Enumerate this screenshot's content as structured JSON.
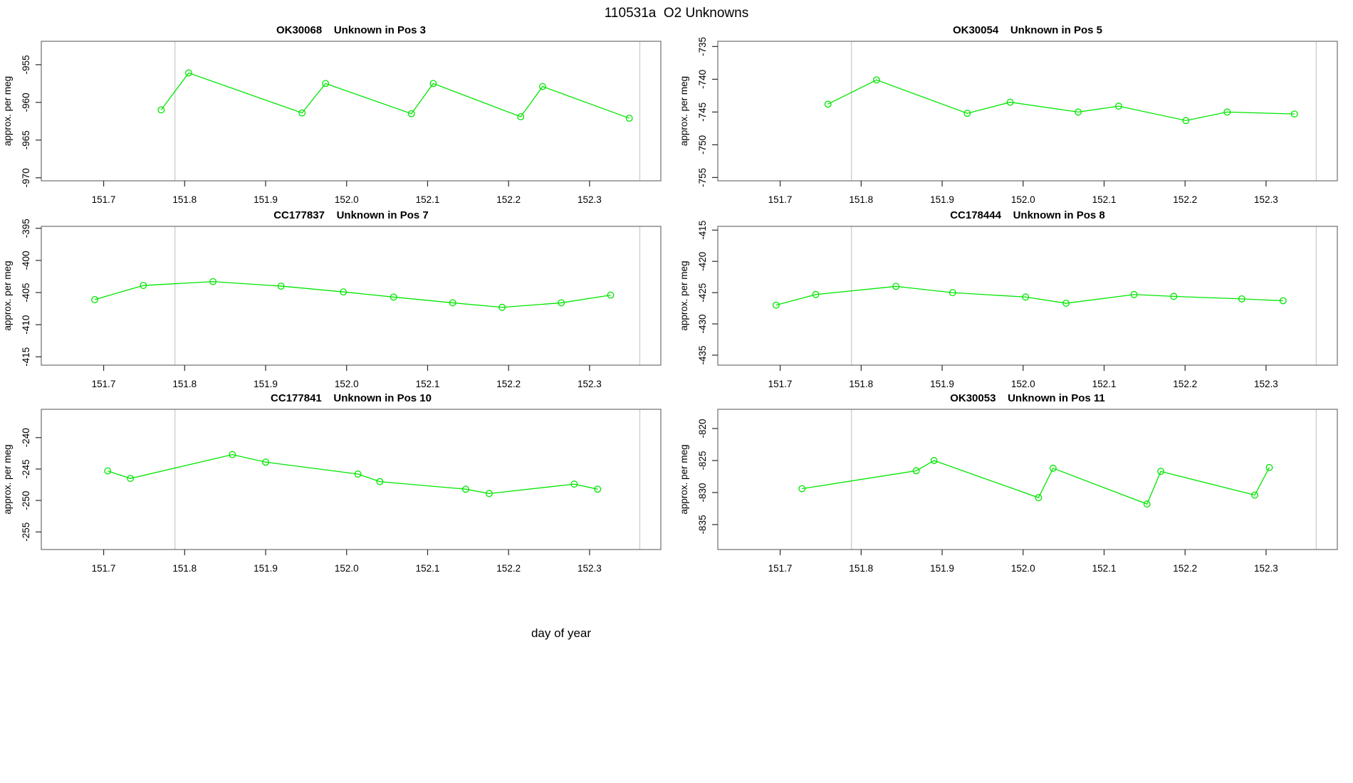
{
  "figure": {
    "main_title": "110531a  O2 Unknowns",
    "outer_xlabel": "day of year",
    "ylabel": "approx. per meg"
  },
  "colors": {
    "series": "#00e600",
    "ref_line": "#cfcfcf",
    "box": "#6e6e6e",
    "tick": "#2a2a2a",
    "text": "#000000",
    "background": "#ffffff"
  },
  "chart_data": [
    {
      "type": "line",
      "sample_id": "OK30068",
      "position_label": "Unknown in Pos 3",
      "title": "OK30068    Unknown in Pos 3",
      "ylabel": "approx. per meg",
      "xlim": [
        151.623,
        152.388
      ],
      "ylim": [
        -970.4,
        -951.9
      ],
      "x_ticks": [
        151.7,
        151.8,
        151.9,
        152.0,
        152.1,
        152.2,
        152.3
      ],
      "y_ticks": [
        -955,
        -960,
        -965,
        -970
      ],
      "ref_lines_x": [
        151.788,
        152.362
      ],
      "x": [
        151.771,
        151.805,
        151.945,
        151.974,
        152.08,
        152.107,
        152.215,
        152.242,
        152.349
      ],
      "y": [
        -961.0,
        -956.1,
        -961.4,
        -957.5,
        -961.5,
        -957.5,
        -961.9,
        -957.9,
        -962.1
      ]
    },
    {
      "type": "line",
      "sample_id": "OK30054",
      "position_label": "Unknown in Pos 5",
      "title": "OK30054    Unknown in Pos 5",
      "ylabel": "approx. per meg",
      "xlim": [
        151.623,
        152.388
      ],
      "ylim": [
        -755.5,
        -734.2
      ],
      "x_ticks": [
        151.7,
        151.8,
        151.9,
        152.0,
        152.1,
        152.2,
        152.3
      ],
      "y_ticks": [
        -735,
        -740,
        -745,
        -750,
        -755
      ],
      "ref_lines_x": [
        151.788,
        152.362
      ],
      "x": [
        151.759,
        151.819,
        151.931,
        151.984,
        152.068,
        152.118,
        152.201,
        152.252,
        152.335
      ],
      "y": [
        -743.8,
        -740.1,
        -745.2,
        -743.5,
        -745.0,
        -744.1,
        -746.3,
        -745.0,
        -745.3
      ]
    },
    {
      "type": "line",
      "sample_id": "CC177837",
      "position_label": "Unknown in Pos 7",
      "title": "CC177837    Unknown in Pos 7",
      "ylabel": "approx. per meg",
      "xlim": [
        151.623,
        152.388
      ],
      "ylim": [
        -416.3,
        -394.7
      ],
      "x_ticks": [
        151.7,
        151.8,
        151.9,
        152.0,
        152.1,
        152.2,
        152.3
      ],
      "y_ticks": [
        -395,
        -400,
        -405,
        -410,
        -415
      ],
      "ref_lines_x": [
        151.788,
        152.362
      ],
      "x": [
        151.689,
        151.749,
        151.835,
        151.919,
        151.996,
        152.058,
        152.131,
        152.192,
        152.265,
        152.326
      ],
      "y": [
        -406.1,
        -403.9,
        -403.3,
        -404.0,
        -404.9,
        -405.7,
        -406.6,
        -407.3,
        -406.6,
        -405.4
      ]
    },
    {
      "type": "line",
      "sample_id": "CC178444",
      "position_label": "Unknown in Pos 8",
      "title": "CC178444    Unknown in Pos 8",
      "ylabel": "approx. per meg",
      "xlim": [
        151.623,
        152.388
      ],
      "ylim": [
        -436.6,
        -414.4
      ],
      "x_ticks": [
        151.7,
        151.8,
        151.9,
        152.0,
        152.1,
        152.2,
        152.3
      ],
      "y_ticks": [
        -415,
        -420,
        -425,
        -430,
        -435
      ],
      "ref_lines_x": [
        151.788,
        152.362
      ],
      "x": [
        151.695,
        151.744,
        151.843,
        151.913,
        152.003,
        152.053,
        152.137,
        152.186,
        152.27,
        152.321
      ],
      "y": [
        -427.0,
        -425.3,
        -424.0,
        -425.0,
        -425.7,
        -426.7,
        -425.3,
        -425.6,
        -426.0,
        -426.3
      ]
    },
    {
      "type": "line",
      "sample_id": "CC177841",
      "position_label": "Unknown in Pos 10",
      "title": "CC177841    Unknown in Pos 10",
      "ylabel": "approx. per meg",
      "xlim": [
        151.623,
        152.388
      ],
      "ylim": [
        -257.8,
        -235.5
      ],
      "x_ticks": [
        151.7,
        151.8,
        151.9,
        152.0,
        152.1,
        152.2,
        152.3
      ],
      "y_ticks": [
        -240,
        -245,
        -250,
        -255
      ],
      "ref_lines_x": [
        151.788,
        152.362
      ],
      "x": [
        151.705,
        151.733,
        151.859,
        151.9,
        152.014,
        152.041,
        152.147,
        152.176,
        152.281,
        152.31
      ],
      "y": [
        -245.3,
        -246.5,
        -242.7,
        -243.9,
        -245.8,
        -247.0,
        -248.2,
        -248.9,
        -247.4,
        -248.2
      ]
    },
    {
      "type": "line",
      "sample_id": "OK30053",
      "position_label": "Unknown in Pos 11",
      "title": "OK30053    Unknown in Pos 11",
      "ylabel": "approx. per meg",
      "xlim": [
        151.623,
        152.388
      ],
      "ylim": [
        -838.9,
        -817.0
      ],
      "x_ticks": [
        151.7,
        151.8,
        151.9,
        152.0,
        152.1,
        152.2,
        152.3
      ],
      "y_ticks": [
        -820,
        -825,
        -830,
        -835
      ],
      "ref_lines_x": [
        151.788,
        152.362
      ],
      "x": [
        151.727,
        151.868,
        151.89,
        152.019,
        152.037,
        152.153,
        152.17,
        152.286,
        152.304
      ],
      "y": [
        -829.4,
        -826.6,
        -825.0,
        -830.8,
        -826.2,
        -831.8,
        -826.7,
        -830.4,
        -826.1
      ]
    }
  ]
}
